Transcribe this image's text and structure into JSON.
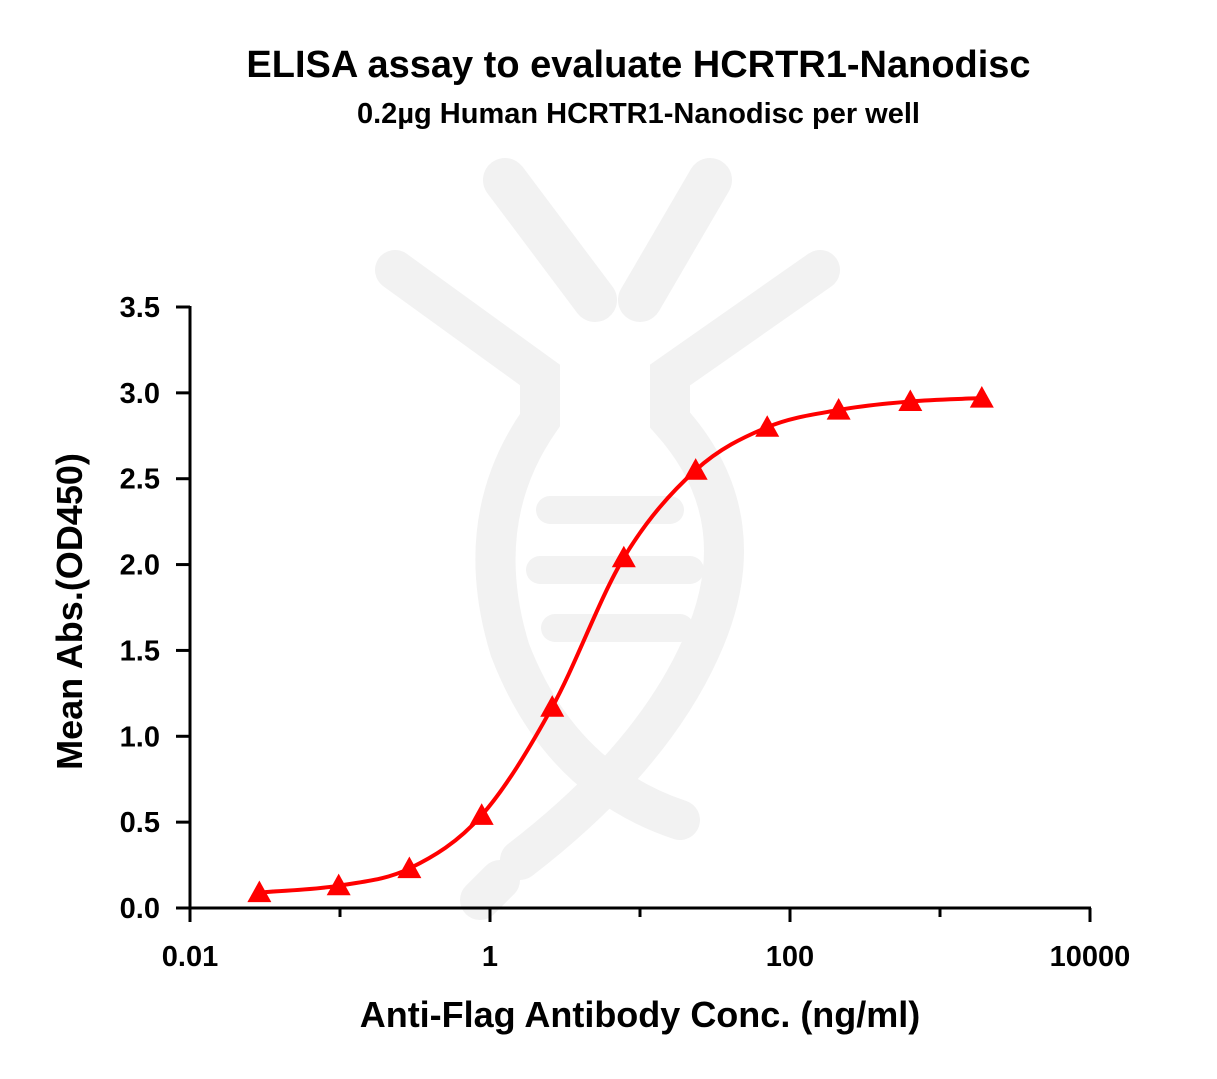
{
  "chart_data": {
    "type": "line",
    "title": "ELISA assay to evaluate HCRTR1-Nanodisc",
    "subtitle": "0.2µg Human HCRTR1-Nanodisc per well",
    "xlabel": "Anti-Flag Antibody Conc. (ng/ml)",
    "ylabel": "Mean Abs.(OD450)",
    "x_scale": "log",
    "xlim": [
      0.01,
      10000
    ],
    "ylim": [
      0,
      3.5
    ],
    "x_ticks": [
      {
        "value": 0.01,
        "label": "0.01"
      },
      {
        "value": 1,
        "label": "1"
      },
      {
        "value": 100,
        "label": "100"
      },
      {
        "value": 10000,
        "label": "10000"
      }
    ],
    "y_ticks": [
      {
        "value": 0,
        "label": "0.0"
      },
      {
        "value": 0.5,
        "label": "0.5"
      },
      {
        "value": 1.0,
        "label": "1.0"
      },
      {
        "value": 1.5,
        "label": "1.5"
      },
      {
        "value": 2.0,
        "label": "2.0"
      },
      {
        "value": 2.5,
        "label": "2.5"
      },
      {
        "value": 3.0,
        "label": "3.0"
      },
      {
        "value": 3.5,
        "label": "3.5"
      }
    ],
    "series": [
      {
        "marker": "triangle",
        "color": "#ff0000",
        "x": [
          0.029,
          0.098,
          0.29,
          0.88,
          2.6,
          7.8,
          23.5,
          70.5,
          211,
          634,
          1900
        ],
        "y": [
          0.09,
          0.13,
          0.23,
          0.54,
          1.17,
          2.04,
          2.55,
          2.8,
          2.9,
          2.95,
          2.97
        ]
      }
    ],
    "grid": false,
    "legend": "none"
  }
}
